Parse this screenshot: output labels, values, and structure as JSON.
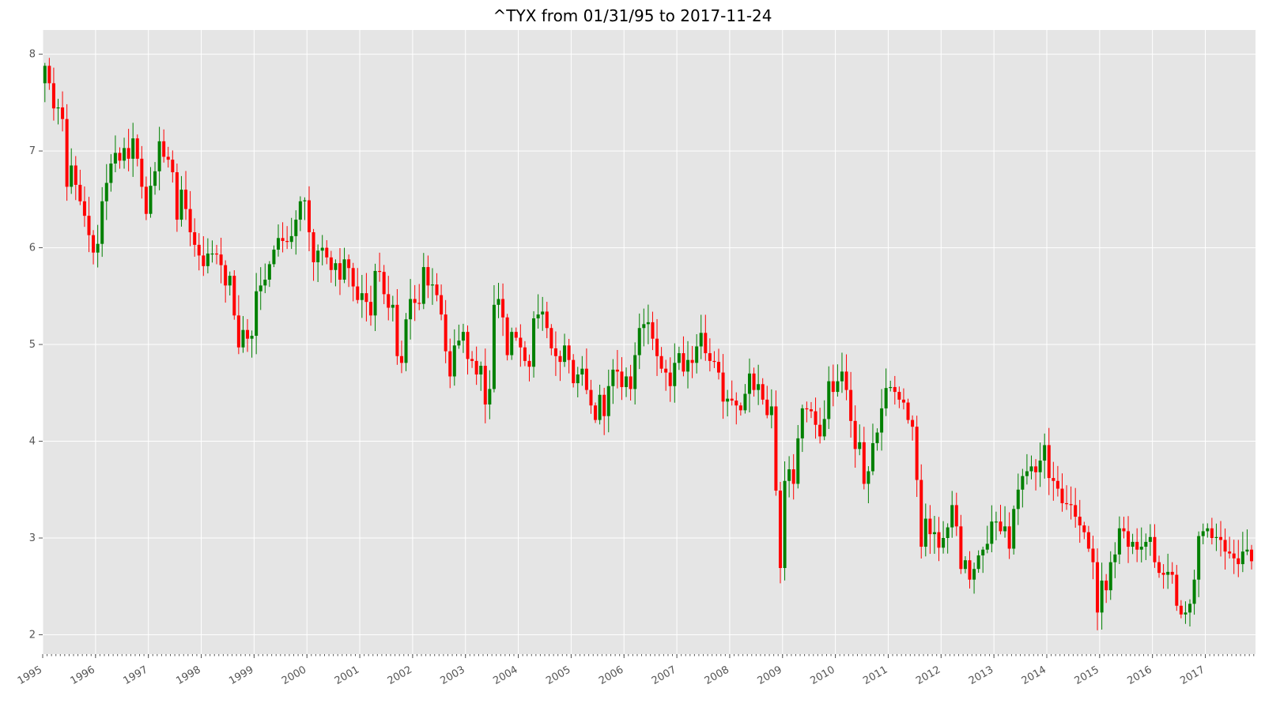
{
  "chart_data": {
    "type": "candlestick",
    "title": "^TYX from 01/31/95 to 2017-11-24",
    "xlabel": "",
    "ylabel": "",
    "ylim": [
      1.8,
      8.25
    ],
    "xlim": [
      1995.0,
      2017.95
    ],
    "grid": true,
    "legend": "none",
    "colors": {
      "up": "#008000",
      "down": "#ff0000",
      "background": "#e5e5e5",
      "grid": "#ffffff"
    },
    "yticks": [
      "2",
      "3",
      "4",
      "5",
      "6",
      "7",
      "8"
    ],
    "xticks": [
      "1995",
      "1996",
      "1997",
      "1998",
      "1999",
      "2000",
      "2001",
      "2002",
      "2003",
      "2004",
      "2005",
      "2006",
      "2007",
      "2008",
      "2009",
      "2010",
      "2011",
      "2012",
      "2013",
      "2014",
      "2015",
      "2016",
      "2017"
    ],
    "series": [
      {
        "interval": "monthly",
        "start": "1995-01",
        "close": [
          7.88,
          7.7,
          7.44,
          7.45,
          7.33,
          6.63,
          6.85,
          6.65,
          6.48,
          6.33,
          6.13,
          5.95,
          6.04,
          6.48,
          6.67,
          6.87,
          6.98,
          6.9,
          7.03,
          6.92,
          7.13,
          6.92,
          6.63,
          6.35,
          6.64,
          6.79,
          7.1,
          6.94,
          6.91,
          6.78,
          6.29,
          6.6,
          6.4,
          6.16,
          6.03,
          5.92,
          5.81,
          5.94,
          5.94,
          5.93,
          5.82,
          5.61,
          5.71,
          5.3,
          4.97,
          5.15,
          5.06,
          5.09,
          5.55,
          5.61,
          5.67,
          5.83,
          5.98,
          6.1,
          6.07,
          6.06,
          6.12,
          6.29,
          6.48,
          6.49,
          6.16,
          5.85,
          5.97,
          6.0,
          5.9,
          5.77,
          5.84,
          5.67,
          5.88,
          5.79,
          5.6,
          5.46,
          5.53,
          5.44,
          5.3,
          5.76,
          5.75,
          5.52,
          5.38,
          5.41,
          4.88,
          4.81,
          5.26,
          5.47,
          5.43,
          5.42,
          5.8,
          5.61,
          5.62,
          5.51,
          5.31,
          4.93,
          4.67,
          4.99,
          5.04,
          5.13,
          4.85,
          4.83,
          4.69,
          4.78,
          4.38,
          4.54,
          5.41,
          5.47,
          5.28,
          4.89,
          5.13,
          5.07,
          4.97,
          4.83,
          4.77,
          5.27,
          5.31,
          5.34,
          5.17,
          4.96,
          4.88,
          4.82,
          4.99,
          4.84,
          4.6,
          4.69,
          4.75,
          4.53,
          4.37,
          4.22,
          4.48,
          4.26,
          4.57,
          4.74,
          4.72,
          4.56,
          4.67,
          4.54,
          4.89,
          5.17,
          5.21,
          5.23,
          5.06,
          4.88,
          4.75,
          4.71,
          4.57,
          4.81,
          4.91,
          4.72,
          4.84,
          4.81,
          4.98,
          5.12,
          4.91,
          4.83,
          4.82,
          4.71,
          4.41,
          4.44,
          4.42,
          4.37,
          4.32,
          4.49,
          4.7,
          4.53,
          4.59,
          4.43,
          4.27,
          4.36,
          3.49,
          2.69,
          3.59,
          3.71,
          3.56,
          4.03,
          4.34,
          4.33,
          4.31,
          4.17,
          4.05,
          4.23,
          4.62,
          4.51,
          4.62,
          4.72,
          4.53,
          4.21,
          3.92,
          3.99,
          3.56,
          3.69,
          3.98,
          4.09,
          4.34,
          4.55,
          4.56,
          4.51,
          4.43,
          4.4,
          4.22,
          4.15,
          3.6,
          2.91,
          3.2,
          3.04,
          3.06,
          2.9,
          3.0,
          3.11,
          3.34,
          3.12,
          2.68,
          2.77,
          2.57,
          2.68,
          2.82,
          2.88,
          2.94,
          3.17,
          3.17,
          3.07,
          3.12,
          2.89,
          3.3,
          3.5,
          3.64,
          3.69,
          3.74,
          3.68,
          3.8,
          3.96,
          3.62,
          3.59,
          3.51,
          3.36,
          3.35,
          3.34,
          3.22,
          3.13,
          3.06,
          2.89,
          2.75,
          2.23,
          2.56,
          2.46,
          2.75,
          2.83,
          3.1,
          3.07,
          2.91,
          2.96,
          2.88,
          2.91,
          2.96,
          3.01,
          2.75,
          2.64,
          2.62,
          2.65,
          2.62,
          2.3,
          2.21,
          2.23,
          2.32,
          2.57,
          3.02,
          3.07,
          3.1,
          3.0,
          3.01,
          2.98,
          2.86,
          2.84,
          2.79,
          2.73,
          2.86,
          2.88,
          2.76
        ]
      }
    ]
  }
}
